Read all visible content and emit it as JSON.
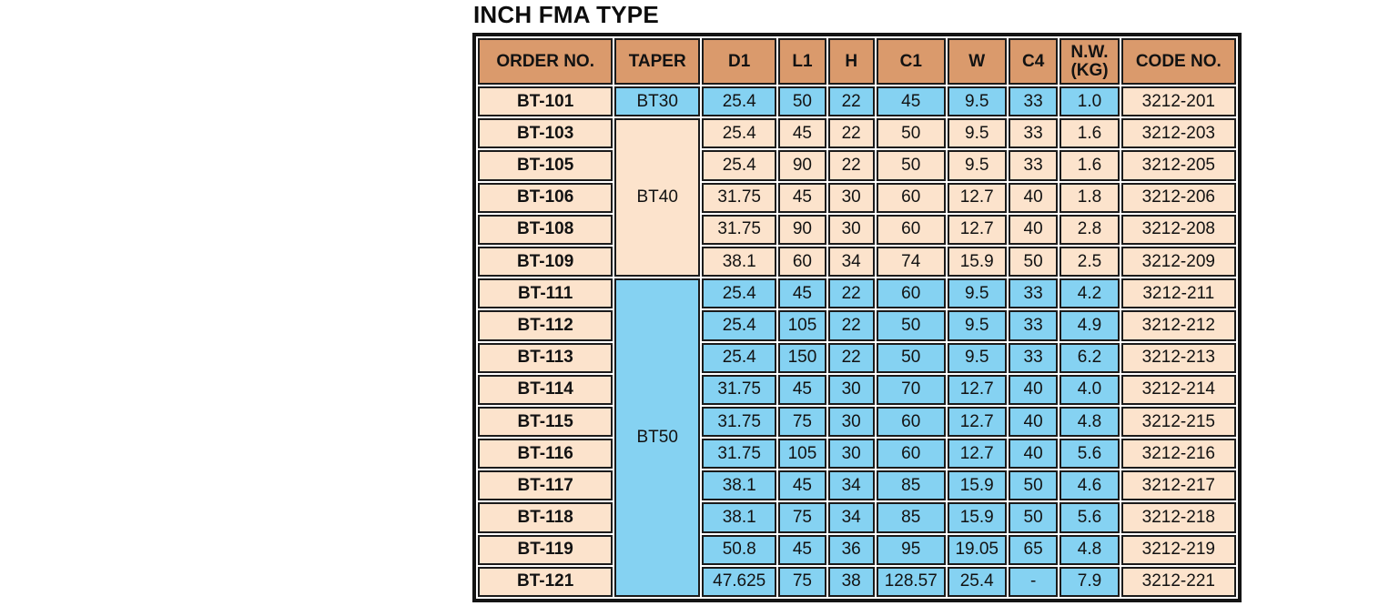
{
  "page_title": "INCH FMA TYPE",
  "colors": {
    "header_bg": "#DA9A6C",
    "peach_bg": "#FCE3CC",
    "blue_bg": "#85D2F2",
    "border": "#1B1B1B",
    "text": "#121212"
  },
  "table": {
    "columns": [
      {
        "key": "order",
        "label": "ORDER NO."
      },
      {
        "key": "taper",
        "label": "TAPER"
      },
      {
        "key": "d1",
        "label": "D1"
      },
      {
        "key": "l1",
        "label": "L1"
      },
      {
        "key": "h",
        "label": "H"
      },
      {
        "key": "c1",
        "label": "C1"
      },
      {
        "key": "w",
        "label": "W"
      },
      {
        "key": "c4",
        "label": "C4"
      },
      {
        "key": "nw",
        "label": "N.W.\n(KG)"
      },
      {
        "key": "code",
        "label": "CODE NO."
      }
    ],
    "groups": [
      {
        "taper": "BT30",
        "tone": "blue",
        "rows": [
          {
            "order": "BT-101",
            "d1": "25.4",
            "l1": "50",
            "h": "22",
            "c1": "45",
            "w": "9.5",
            "c4": "33",
            "nw": "1.0",
            "code": "3212-201"
          }
        ]
      },
      {
        "taper": "BT40",
        "tone": "peach",
        "rows": [
          {
            "order": "BT-103",
            "d1": "25.4",
            "l1": "45",
            "h": "22",
            "c1": "50",
            "w": "9.5",
            "c4": "33",
            "nw": "1.6",
            "code": "3212-203"
          },
          {
            "order": "BT-105",
            "d1": "25.4",
            "l1": "90",
            "h": "22",
            "c1": "50",
            "w": "9.5",
            "c4": "33",
            "nw": "1.6",
            "code": "3212-205"
          },
          {
            "order": "BT-106",
            "d1": "31.75",
            "l1": "45",
            "h": "30",
            "c1": "60",
            "w": "12.7",
            "c4": "40",
            "nw": "1.8",
            "code": "3212-206"
          },
          {
            "order": "BT-108",
            "d1": "31.75",
            "l1": "90",
            "h": "30",
            "c1": "60",
            "w": "12.7",
            "c4": "40",
            "nw": "2.8",
            "code": "3212-208"
          },
          {
            "order": "BT-109",
            "d1": "38.1",
            "l1": "60",
            "h": "34",
            "c1": "74",
            "w": "15.9",
            "c4": "50",
            "nw": "2.5",
            "code": "3212-209"
          }
        ]
      },
      {
        "taper": "BT50",
        "tone": "blue",
        "rows": [
          {
            "order": "BT-111",
            "d1": "25.4",
            "l1": "45",
            "h": "22",
            "c1": "60",
            "w": "9.5",
            "c4": "33",
            "nw": "4.2",
            "code": "3212-211"
          },
          {
            "order": "BT-112",
            "d1": "25.4",
            "l1": "105",
            "h": "22",
            "c1": "50",
            "w": "9.5",
            "c4": "33",
            "nw": "4.9",
            "code": "3212-212"
          },
          {
            "order": "BT-113",
            "d1": "25.4",
            "l1": "150",
            "h": "22",
            "c1": "50",
            "w": "9.5",
            "c4": "33",
            "nw": "6.2",
            "code": "3212-213"
          },
          {
            "order": "BT-114",
            "d1": "31.75",
            "l1": "45",
            "h": "30",
            "c1": "70",
            "w": "12.7",
            "c4": "40",
            "nw": "4.0",
            "code": "3212-214"
          },
          {
            "order": "BT-115",
            "d1": "31.75",
            "l1": "75",
            "h": "30",
            "c1": "60",
            "w": "12.7",
            "c4": "40",
            "nw": "4.8",
            "code": "3212-215"
          },
          {
            "order": "BT-116",
            "d1": "31.75",
            "l1": "105",
            "h": "30",
            "c1": "60",
            "w": "12.7",
            "c4": "40",
            "nw": "5.6",
            "code": "3212-216"
          },
          {
            "order": "BT-117",
            "d1": "38.1",
            "l1": "45",
            "h": "34",
            "c1": "85",
            "w": "15.9",
            "c4": "50",
            "nw": "4.6",
            "code": "3212-217"
          },
          {
            "order": "BT-118",
            "d1": "38.1",
            "l1": "75",
            "h": "34",
            "c1": "85",
            "w": "15.9",
            "c4": "50",
            "nw": "5.6",
            "code": "3212-218"
          },
          {
            "order": "BT-119",
            "d1": "50.8",
            "l1": "45",
            "h": "36",
            "c1": "95",
            "w": "19.05",
            "c4": "65",
            "nw": "4.8",
            "code": "3212-219"
          },
          {
            "order": "BT-121",
            "d1": "47.625",
            "l1": "75",
            "h": "38",
            "c1": "128.57",
            "w": "25.4",
            "c4": "-",
            "nw": "7.9",
            "code": "3212-221"
          }
        ]
      }
    ]
  }
}
